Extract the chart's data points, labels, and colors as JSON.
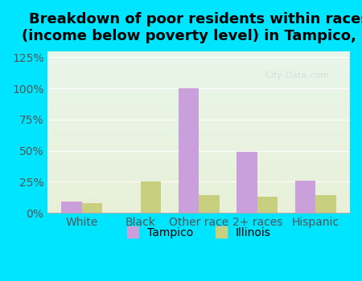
{
  "title": "Breakdown of poor residents within races\n(income below poverty level) in Tampico, IL",
  "categories": [
    "White",
    "Black",
    "Other race",
    "2+ races",
    "Hispanic"
  ],
  "tampico_values": [
    9,
    0,
    100,
    49,
    26
  ],
  "illinois_values": [
    8,
    25,
    14,
    13,
    14
  ],
  "tampico_color": "#c9a0dc",
  "illinois_color": "#c8d080",
  "background_outer": "#00e5ff",
  "background_inner_top": "#e8f5e9",
  "background_inner_bottom": "#f0f8e8",
  "ylim": [
    0,
    130
  ],
  "yticks": [
    0,
    25,
    50,
    75,
    100,
    125
  ],
  "ytick_labels": [
    "0%",
    "25%",
    "50%",
    "75%",
    "100%",
    "125%"
  ],
  "legend_tampico": "Tampico",
  "legend_illinois": "Illinois",
  "title_fontsize": 13,
  "tick_fontsize": 10
}
